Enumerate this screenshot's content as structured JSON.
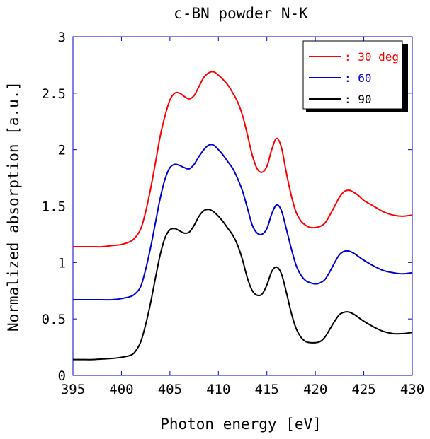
{
  "chart_data": {
    "type": "line",
    "title": "c-BN powder N-K",
    "xlabel": "Photon energy [eV]",
    "ylabel": "Normalized absorption [a.u.]",
    "xlim": [
      395,
      430
    ],
    "ylim": [
      0,
      3
    ],
    "xticks": [
      "395",
      "400",
      "405",
      "410",
      "415",
      "420",
      "425",
      "430"
    ],
    "yticks": [
      "0",
      "0.5",
      "1",
      "1.5",
      "2",
      "2.5",
      "3"
    ],
    "grid": false,
    "legend_position": "top-right",
    "series": [
      {
        "name": "30 deg",
        "legend_label": ": 30 deg",
        "color": "#ff0000",
        "x": [
          395,
          396,
          397,
          398,
          399,
          400,
          401,
          401.5,
          402,
          402.5,
          403,
          403.5,
          404,
          404.5,
          405,
          405.5,
          406,
          406.5,
          407,
          407.5,
          408,
          408.5,
          409,
          409.5,
          410,
          410.5,
          411,
          411.5,
          412,
          412.5,
          413,
          413.5,
          414,
          414.5,
          415,
          415.5,
          416,
          416.5,
          417,
          417.5,
          418,
          418.5,
          419,
          419.5,
          420,
          420.5,
          421,
          421.5,
          422,
          422.5,
          423,
          423.5,
          424,
          424.5,
          425,
          426,
          427,
          428,
          429,
          430
        ],
        "y": [
          1.14,
          1.14,
          1.14,
          1.14,
          1.15,
          1.16,
          1.19,
          1.23,
          1.3,
          1.45,
          1.65,
          1.88,
          2.12,
          2.3,
          2.44,
          2.5,
          2.5,
          2.47,
          2.45,
          2.48,
          2.56,
          2.64,
          2.68,
          2.69,
          2.66,
          2.62,
          2.57,
          2.5,
          2.42,
          2.3,
          2.13,
          1.95,
          1.83,
          1.8,
          1.85,
          2.0,
          2.1,
          2.02,
          1.8,
          1.6,
          1.45,
          1.37,
          1.33,
          1.31,
          1.31,
          1.32,
          1.35,
          1.42,
          1.5,
          1.58,
          1.63,
          1.64,
          1.62,
          1.59,
          1.55,
          1.5,
          1.45,
          1.42,
          1.41,
          1.42
        ]
      },
      {
        "name": "60",
        "legend_label": ": 60",
        "color": "#0000cc",
        "x": [
          395,
          396,
          397,
          398,
          399,
          400,
          401,
          401.5,
          402,
          402.5,
          403,
          403.5,
          404,
          404.5,
          405,
          405.5,
          406,
          406.5,
          407,
          407.5,
          408,
          408.5,
          409,
          409.5,
          410,
          410.5,
          411,
          411.5,
          412,
          412.5,
          413,
          413.5,
          414,
          414.5,
          415,
          415.5,
          416,
          416.5,
          417,
          417.5,
          418,
          418.5,
          419,
          419.5,
          420,
          420.5,
          421,
          421.5,
          422,
          422.5,
          423,
          423.5,
          424,
          424.5,
          425,
          426,
          427,
          428,
          429,
          430
        ],
        "y": [
          0.67,
          0.67,
          0.67,
          0.67,
          0.67,
          0.68,
          0.7,
          0.73,
          0.79,
          0.94,
          1.13,
          1.35,
          1.57,
          1.74,
          1.84,
          1.87,
          1.86,
          1.84,
          1.83,
          1.87,
          1.94,
          2.0,
          2.04,
          2.04,
          2.0,
          1.95,
          1.89,
          1.83,
          1.74,
          1.63,
          1.48,
          1.33,
          1.26,
          1.25,
          1.3,
          1.43,
          1.51,
          1.46,
          1.3,
          1.13,
          0.98,
          0.89,
          0.84,
          0.82,
          0.81,
          0.82,
          0.85,
          0.92,
          1.0,
          1.07,
          1.1,
          1.1,
          1.08,
          1.05,
          1.02,
          0.97,
          0.93,
          0.91,
          0.9,
          0.91
        ]
      },
      {
        "name": "90",
        "legend_label": ": 90",
        "color": "#000000",
        "x": [
          395,
          396,
          397,
          398,
          399,
          400,
          401,
          401.5,
          402,
          402.5,
          403,
          403.5,
          404,
          404.5,
          405,
          405.5,
          406,
          406.5,
          407,
          407.5,
          408,
          408.5,
          409,
          409.5,
          410,
          410.5,
          411,
          411.5,
          412,
          412.5,
          413,
          413.5,
          414,
          414.5,
          415,
          415.5,
          416,
          416.5,
          417,
          417.5,
          418,
          418.5,
          419,
          419.5,
          420,
          420.5,
          421,
          421.5,
          422,
          422.5,
          423,
          423.5,
          424,
          424.5,
          425,
          426,
          427,
          428,
          429,
          430
        ],
        "y": [
          0.14,
          0.14,
          0.14,
          0.145,
          0.15,
          0.16,
          0.18,
          0.22,
          0.3,
          0.45,
          0.64,
          0.86,
          1.07,
          1.22,
          1.29,
          1.3,
          1.28,
          1.26,
          1.27,
          1.33,
          1.41,
          1.46,
          1.47,
          1.45,
          1.41,
          1.36,
          1.3,
          1.24,
          1.15,
          1.02,
          0.86,
          0.75,
          0.71,
          0.72,
          0.8,
          0.92,
          0.96,
          0.9,
          0.74,
          0.56,
          0.42,
          0.34,
          0.3,
          0.29,
          0.29,
          0.3,
          0.34,
          0.41,
          0.48,
          0.54,
          0.56,
          0.56,
          0.54,
          0.51,
          0.48,
          0.43,
          0.39,
          0.37,
          0.37,
          0.38
        ]
      }
    ]
  }
}
